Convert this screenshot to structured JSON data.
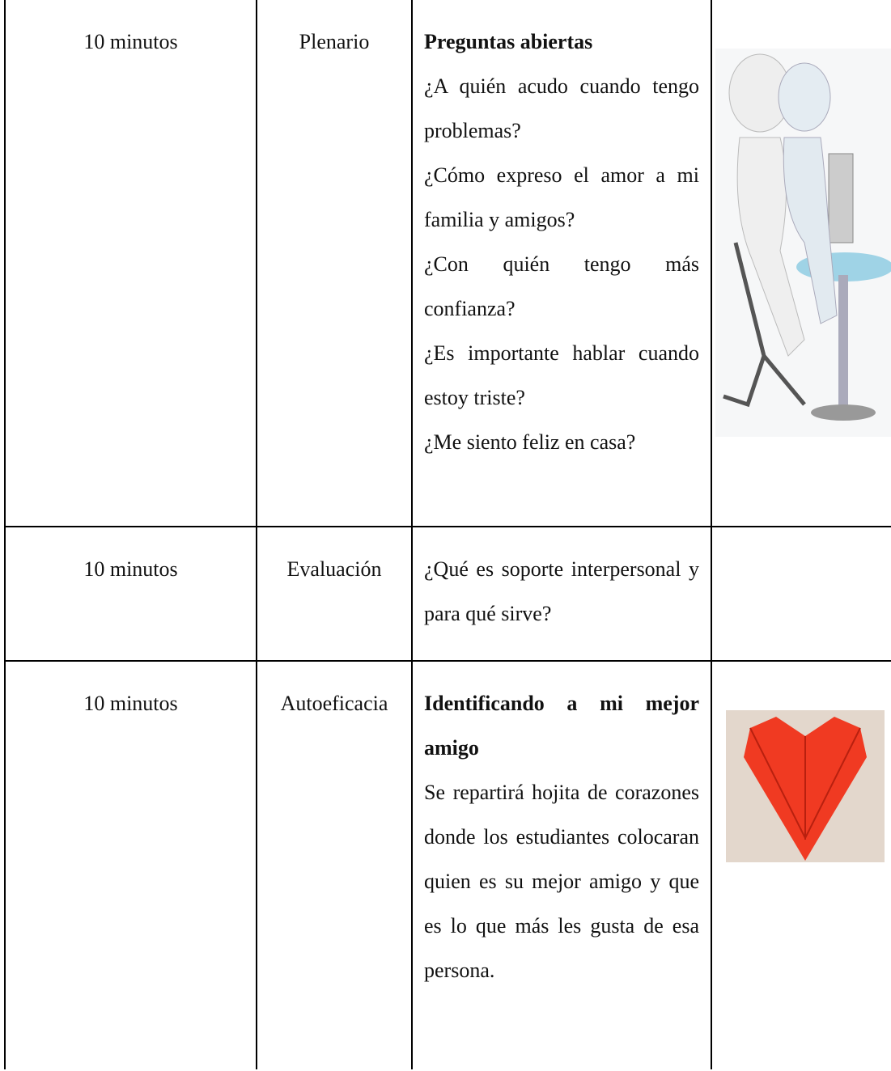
{
  "table": {
    "rows": [
      {
        "duration": "10 minutos",
        "stage": "Plenario",
        "heading": "Preguntas abiertas",
        "paragraphs": [
          "¿A quién acudo cuando tengo problemas?",
          "¿Cómo expreso el amor a mi familia y amigos?",
          "¿Con quién tengo más confianza?",
          "¿Es importante hablar cuando estoy triste?",
          "¿Me siento feliz en casa?"
        ]
      },
      {
        "duration": "10 minutos",
        "stage": "Evaluación",
        "paragraphs": [
          "¿Qué es soporte interpersonal y para qué sirve?"
        ]
      },
      {
        "duration": "10 minutos",
        "stage": "Autoeficacia",
        "heading": "Identificando a mi mejor amigo",
        "paragraphs": [
          "Se repartirá hojita de corazones donde los estudiantes colocaran quien es su mejor amigo y que es lo que más les gusta de esa persona."
        ]
      }
    ]
  }
}
